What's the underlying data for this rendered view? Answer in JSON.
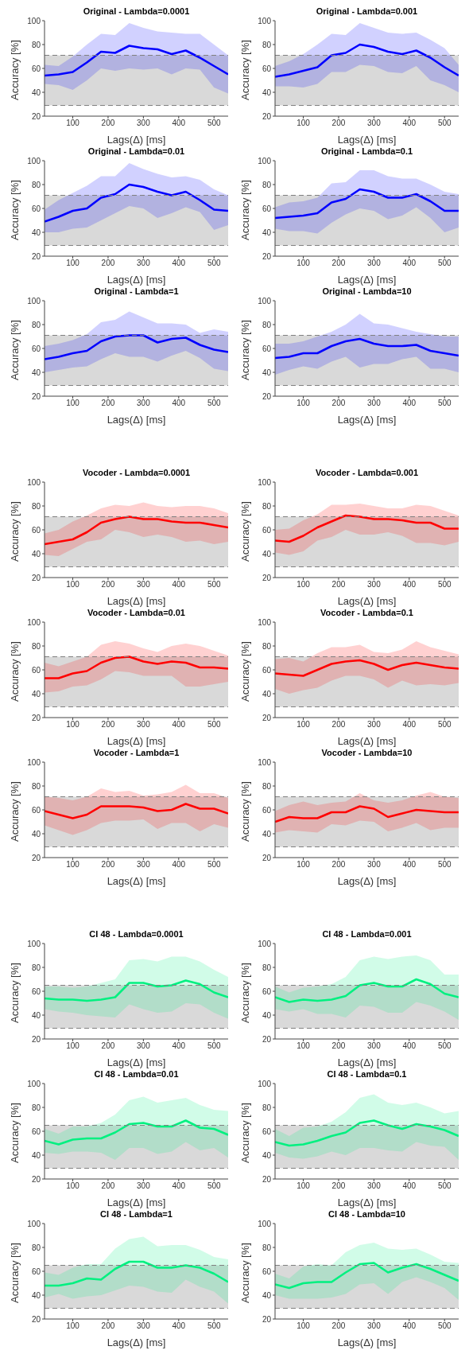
{
  "chart_data": [
    {
      "type": "line",
      "title": "Original - Lambda=0.0001",
      "xlabel": "Lags(Δ) [ms]",
      "ylabel": "Accuracy [%]",
      "x": [
        20,
        60,
        100,
        140,
        180,
        220,
        260,
        300,
        340,
        380,
        420,
        460,
        500,
        540
      ],
      "xlim": [
        20,
        540
      ],
      "xticks": [
        100,
        200,
        300,
        400,
        500
      ],
      "ylim": [
        20,
        100
      ],
      "yticks": [
        20,
        40,
        60,
        80,
        100
      ],
      "bands": [
        {
          "axis": "y",
          "from": 29,
          "to": 71,
          "color": "#d9d9d9"
        }
      ],
      "ref_lines": [
        {
          "axis": "y",
          "value": 29,
          "color": "#808080",
          "line_style": "dashed"
        },
        {
          "axis": "y",
          "value": 71,
          "color": "#808080",
          "line_style": "dashed"
        }
      ],
      "series": [
        {
          "color": "#0000ff",
          "values": [
            54,
            55,
            57,
            65,
            74,
            73,
            79,
            77,
            76,
            72,
            75,
            69,
            62,
            55
          ],
          "lower": [
            47,
            46,
            42,
            50,
            60,
            58,
            60,
            59,
            60,
            55,
            60,
            59,
            44,
            39
          ],
          "upper": [
            63,
            62,
            70,
            80,
            89,
            88,
            98,
            94,
            91,
            90,
            89,
            89,
            80,
            71
          ]
        }
      ]
    },
    {
      "type": "line",
      "title": "Original - Lambda=0.001",
      "xlabel": "Lags(Δ) [ms]",
      "ylabel": "Accuracy [%]",
      "x": [
        20,
        60,
        100,
        140,
        180,
        220,
        260,
        300,
        340,
        380,
        420,
        460,
        500,
        540
      ],
      "xlim": [
        20,
        540
      ],
      "xticks": [
        100,
        200,
        300,
        400,
        500
      ],
      "ylim": [
        20,
        100
      ],
      "yticks": [
        20,
        40,
        60,
        80,
        100
      ],
      "bands": [
        {
          "axis": "y",
          "from": 29,
          "to": 71,
          "color": "#d9d9d9"
        }
      ],
      "ref_lines": [
        {
          "axis": "y",
          "value": 29,
          "color": "#808080",
          "line_style": "dashed"
        },
        {
          "axis": "y",
          "value": 71,
          "color": "#808080",
          "line_style": "dashed"
        }
      ],
      "series": [
        {
          "color": "#0000ff",
          "values": [
            53,
            55,
            58,
            61,
            71,
            73,
            80,
            78,
            74,
            72,
            75,
            69,
            61,
            54
          ],
          "lower": [
            45,
            45,
            44,
            47,
            57,
            57,
            63,
            62,
            57,
            56,
            62,
            50,
            46,
            40
          ],
          "upper": [
            62,
            66,
            72,
            80,
            89,
            88,
            98,
            94,
            90,
            89,
            90,
            84,
            77,
            63
          ]
        }
      ]
    },
    {
      "type": "line",
      "title": "Original - Lambda=0.01",
      "xlabel": "Lags(Δ) [ms]",
      "ylabel": "Accuracy [%]",
      "x": [
        20,
        60,
        100,
        140,
        180,
        220,
        260,
        300,
        340,
        380,
        420,
        460,
        500,
        540
      ],
      "xlim": [
        20,
        540
      ],
      "xticks": [
        100,
        200,
        300,
        400,
        500
      ],
      "ylim": [
        20,
        100
      ],
      "yticks": [
        20,
        40,
        60,
        80,
        100
      ],
      "bands": [
        {
          "axis": "y",
          "from": 29,
          "to": 71,
          "color": "#d9d9d9"
        }
      ],
      "ref_lines": [
        {
          "axis": "y",
          "value": 29,
          "color": "#808080",
          "line_style": "dashed"
        },
        {
          "axis": "y",
          "value": 71,
          "color": "#808080",
          "line_style": "dashed"
        }
      ],
      "series": [
        {
          "color": "#0000ff",
          "values": [
            49,
            53,
            58,
            60,
            69,
            72,
            80,
            78,
            74,
            71,
            74,
            67,
            59,
            58
          ],
          "lower": [
            40,
            40,
            43,
            44,
            50,
            56,
            62,
            60,
            52,
            56,
            61,
            57,
            42,
            46
          ],
          "upper": [
            59,
            67,
            73,
            79,
            87,
            87,
            98,
            93,
            89,
            86,
            87,
            84,
            76,
            71
          ]
        }
      ]
    },
    {
      "type": "line",
      "title": "Original - Lambda=0.1",
      "xlabel": "Lags(Δ) [ms]",
      "ylabel": "Accuracy [%]",
      "x": [
        20,
        60,
        100,
        140,
        180,
        220,
        260,
        300,
        340,
        380,
        420,
        460,
        500,
        540
      ],
      "xlim": [
        20,
        540
      ],
      "xticks": [
        100,
        200,
        300,
        400,
        500
      ],
      "ylim": [
        20,
        100
      ],
      "yticks": [
        20,
        40,
        60,
        80,
        100
      ],
      "bands": [
        {
          "axis": "y",
          "from": 29,
          "to": 71,
          "color": "#d9d9d9"
        }
      ],
      "ref_lines": [
        {
          "axis": "y",
          "value": 29,
          "color": "#808080",
          "line_style": "dashed"
        },
        {
          "axis": "y",
          "value": 71,
          "color": "#808080",
          "line_style": "dashed"
        }
      ],
      "series": [
        {
          "color": "#0000ff",
          "values": [
            52,
            53,
            54,
            56,
            65,
            68,
            76,
            74,
            69,
            69,
            72,
            66,
            58,
            58
          ],
          "lower": [
            43,
            41,
            41,
            39,
            48,
            55,
            60,
            58,
            51,
            54,
            61,
            52,
            40,
            44
          ],
          "upper": [
            61,
            65,
            66,
            69,
            81,
            82,
            92,
            92,
            87,
            85,
            85,
            80,
            74,
            72
          ]
        }
      ]
    },
    {
      "type": "line",
      "title": "Original - Lambda=1",
      "xlabel": "Lags(Δ) [ms]",
      "ylabel": "Accuracy [%]",
      "x": [
        20,
        60,
        100,
        140,
        180,
        220,
        260,
        300,
        340,
        380,
        420,
        460,
        500,
        540
      ],
      "xlim": [
        20,
        540
      ],
      "xticks": [
        100,
        200,
        300,
        400,
        500
      ],
      "ylim": [
        20,
        100
      ],
      "yticks": [
        20,
        40,
        60,
        80,
        100
      ],
      "bands": [
        {
          "axis": "y",
          "from": 29,
          "to": 71,
          "color": "#d9d9d9"
        }
      ],
      "ref_lines": [
        {
          "axis": "y",
          "value": 29,
          "color": "#808080",
          "line_style": "dashed"
        },
        {
          "axis": "y",
          "value": 71,
          "color": "#808080",
          "line_style": "dashed"
        }
      ],
      "series": [
        {
          "color": "#0000ff",
          "values": [
            51,
            53,
            56,
            58,
            66,
            70,
            71,
            71,
            65,
            68,
            69,
            63,
            59,
            57
          ],
          "lower": [
            40,
            42,
            44,
            45,
            51,
            56,
            53,
            53,
            49,
            54,
            58,
            52,
            43,
            41
          ],
          "upper": [
            62,
            64,
            67,
            72,
            82,
            84,
            91,
            86,
            81,
            81,
            80,
            73,
            76,
            74
          ]
        }
      ]
    },
    {
      "type": "line",
      "title": "Original - Lambda=10",
      "xlabel": "Lags(Δ) [ms]",
      "ylabel": "Accuracy [%]",
      "x": [
        20,
        60,
        100,
        140,
        180,
        220,
        260,
        300,
        340,
        380,
        420,
        460,
        500,
        540
      ],
      "xlim": [
        20,
        540
      ],
      "xticks": [
        100,
        200,
        300,
        400,
        500
      ],
      "ylim": [
        20,
        100
      ],
      "yticks": [
        20,
        40,
        60,
        80,
        100
      ],
      "bands": [
        {
          "axis": "y",
          "from": 29,
          "to": 71,
          "color": "#d9d9d9"
        }
      ],
      "ref_lines": [
        {
          "axis": "y",
          "value": 29,
          "color": "#808080",
          "line_style": "dashed"
        },
        {
          "axis": "y",
          "value": 71,
          "color": "#808080",
          "line_style": "dashed"
        }
      ],
      "series": [
        {
          "color": "#0000ff",
          "values": [
            52,
            53,
            56,
            56,
            62,
            66,
            68,
            64,
            62,
            62,
            63,
            58,
            56,
            54
          ],
          "lower": [
            38,
            42,
            45,
            43,
            49,
            53,
            44,
            47,
            47,
            51,
            53,
            43,
            43,
            40
          ],
          "upper": [
            64,
            64,
            66,
            70,
            74,
            80,
            89,
            81,
            80,
            77,
            74,
            72,
            70,
            70
          ]
        }
      ]
    },
    {
      "type": "line",
      "title": "Vocoder - Lambda=0.0001",
      "xlabel": "Lags(Δ) [ms]",
      "ylabel": "Accuracy [%]",
      "x": [
        20,
        60,
        100,
        140,
        180,
        220,
        260,
        300,
        340,
        380,
        420,
        460,
        500,
        540
      ],
      "xlim": [
        20,
        540
      ],
      "xticks": [
        100,
        200,
        300,
        400,
        500
      ],
      "ylim": [
        20,
        100
      ],
      "yticks": [
        20,
        40,
        60,
        80,
        100
      ],
      "bands": [
        {
          "axis": "y",
          "from": 29,
          "to": 71,
          "color": "#d9d9d9"
        }
      ],
      "ref_lines": [
        {
          "axis": "y",
          "value": 29,
          "color": "#808080",
          "line_style": "dashed"
        },
        {
          "axis": "y",
          "value": 71,
          "color": "#808080",
          "line_style": "dashed"
        }
      ],
      "series": [
        {
          "color": "#ff0000",
          "values": [
            48,
            50,
            52,
            58,
            66,
            69,
            71,
            69,
            69,
            67,
            66,
            66,
            64,
            62
          ],
          "lower": [
            39,
            38,
            44,
            50,
            52,
            60,
            58,
            54,
            56,
            54,
            50,
            51,
            48,
            50
          ],
          "upper": [
            57,
            60,
            67,
            72,
            78,
            81,
            80,
            83,
            80,
            79,
            80,
            80,
            78,
            74
          ]
        }
      ]
    },
    {
      "type": "line",
      "title": "Vocoder - Lambda=0.001",
      "xlabel": "Lags(Δ) [ms]",
      "ylabel": "Accuracy [%]",
      "x": [
        20,
        60,
        100,
        140,
        180,
        220,
        260,
        300,
        340,
        380,
        420,
        460,
        500,
        540
      ],
      "xlim": [
        20,
        540
      ],
      "xticks": [
        100,
        200,
        300,
        400,
        500
      ],
      "ylim": [
        20,
        100
      ],
      "yticks": [
        20,
        40,
        60,
        80,
        100
      ],
      "bands": [
        {
          "axis": "y",
          "from": 29,
          "to": 71,
          "color": "#d9d9d9"
        }
      ],
      "ref_lines": [
        {
          "axis": "y",
          "value": 29,
          "color": "#808080",
          "line_style": "dashed"
        },
        {
          "axis": "y",
          "value": 71,
          "color": "#808080",
          "line_style": "dashed"
        }
      ],
      "series": [
        {
          "color": "#ff0000",
          "values": [
            51,
            50,
            55,
            62,
            67,
            72,
            71,
            69,
            69,
            68,
            66,
            66,
            61,
            61
          ],
          "lower": [
            41,
            39,
            42,
            51,
            54,
            60,
            56,
            56,
            58,
            55,
            49,
            49,
            47,
            50
          ],
          "upper": [
            60,
            61,
            68,
            73,
            81,
            81,
            82,
            80,
            78,
            78,
            81,
            80,
            76,
            72
          ]
        }
      ]
    },
    {
      "type": "line",
      "title": "Vocoder - Lambda=0.01",
      "xlabel": "Lags(Δ) [ms]",
      "ylabel": "Accuracy [%]",
      "x": [
        20,
        60,
        100,
        140,
        180,
        220,
        260,
        300,
        340,
        380,
        420,
        460,
        500,
        540
      ],
      "xlim": [
        20,
        540
      ],
      "xticks": [
        100,
        200,
        300,
        400,
        500
      ],
      "ylim": [
        20,
        100
      ],
      "yticks": [
        20,
        40,
        60,
        80,
        100
      ],
      "bands": [
        {
          "axis": "y",
          "from": 29,
          "to": 71,
          "color": "#d9d9d9"
        }
      ],
      "ref_lines": [
        {
          "axis": "y",
          "value": 29,
          "color": "#808080",
          "line_style": "dashed"
        },
        {
          "axis": "y",
          "value": 71,
          "color": "#808080",
          "line_style": "dashed"
        }
      ],
      "series": [
        {
          "color": "#ff0000",
          "values": [
            53,
            53,
            57,
            59,
            66,
            70,
            71,
            67,
            65,
            67,
            66,
            62,
            62,
            61
          ],
          "lower": [
            41,
            42,
            46,
            47,
            52,
            59,
            58,
            55,
            55,
            55,
            46,
            46,
            48,
            50
          ],
          "upper": [
            66,
            63,
            67,
            71,
            81,
            84,
            82,
            78,
            75,
            80,
            82,
            80,
            76,
            72
          ]
        }
      ]
    },
    {
      "type": "line",
      "title": "Vocoder - Lambda=0.1",
      "xlabel": "Lags(Δ) [ms]",
      "ylabel": "Accuracy [%]",
      "x": [
        20,
        60,
        100,
        140,
        180,
        220,
        260,
        300,
        340,
        380,
        420,
        460,
        500,
        540
      ],
      "xlim": [
        20,
        540
      ],
      "xticks": [
        100,
        200,
        300,
        400,
        500
      ],
      "ylim": [
        20,
        100
      ],
      "yticks": [
        20,
        40,
        60,
        80,
        100
      ],
      "bands": [
        {
          "axis": "y",
          "from": 29,
          "to": 71,
          "color": "#d9d9d9"
        }
      ],
      "ref_lines": [
        {
          "axis": "y",
          "value": 29,
          "color": "#808080",
          "line_style": "dashed"
        },
        {
          "axis": "y",
          "value": 71,
          "color": "#808080",
          "line_style": "dashed"
        }
      ],
      "series": [
        {
          "color": "#ff0000",
          "values": [
            57,
            56,
            55,
            60,
            65,
            67,
            68,
            65,
            60,
            64,
            66,
            64,
            62,
            61
          ],
          "lower": [
            44,
            40,
            43,
            45,
            51,
            55,
            55,
            52,
            45,
            51,
            47,
            48,
            47,
            49
          ],
          "upper": [
            69,
            70,
            67,
            74,
            79,
            79,
            81,
            75,
            74,
            77,
            84,
            79,
            76,
            73
          ]
        }
      ]
    },
    {
      "type": "line",
      "title": "Vocoder - Lambda=1",
      "xlabel": "Lags(Δ) [ms]",
      "ylabel": "Accuracy [%]",
      "x": [
        20,
        60,
        100,
        140,
        180,
        220,
        260,
        300,
        340,
        380,
        420,
        460,
        500,
        540
      ],
      "xlim": [
        20,
        540
      ],
      "xticks": [
        100,
        200,
        300,
        400,
        500
      ],
      "ylim": [
        20,
        100
      ],
      "yticks": [
        20,
        40,
        60,
        80,
        100
      ],
      "bands": [
        {
          "axis": "y",
          "from": 29,
          "to": 71,
          "color": "#d9d9d9"
        }
      ],
      "ref_lines": [
        {
          "axis": "y",
          "value": 29,
          "color": "#808080",
          "line_style": "dashed"
        },
        {
          "axis": "y",
          "value": 71,
          "color": "#808080",
          "line_style": "dashed"
        }
      ],
      "series": [
        {
          "color": "#ff0000",
          "values": [
            59,
            56,
            53,
            56,
            63,
            63,
            63,
            62,
            59,
            60,
            65,
            61,
            61,
            57
          ],
          "lower": [
            47,
            43,
            39,
            43,
            49,
            51,
            51,
            52,
            44,
            49,
            49,
            42,
            48,
            45
          ],
          "upper": [
            71,
            70,
            68,
            71,
            78,
            75,
            76,
            72,
            73,
            75,
            81,
            74,
            74,
            70
          ]
        }
      ]
    },
    {
      "type": "line",
      "title": "Vocoder - Lambda=10",
      "xlabel": "Lags(Δ) [ms]",
      "ylabel": "Accuracy [%]",
      "x": [
        20,
        60,
        100,
        140,
        180,
        220,
        260,
        300,
        340,
        380,
        420,
        460,
        500,
        540
      ],
      "xlim": [
        20,
        540
      ],
      "xticks": [
        100,
        200,
        300,
        400,
        500
      ],
      "ylim": [
        20,
        100
      ],
      "yticks": [
        20,
        40,
        60,
        80,
        100
      ],
      "bands": [
        {
          "axis": "y",
          "from": 29,
          "to": 71,
          "color": "#d9d9d9"
        }
      ],
      "ref_lines": [
        {
          "axis": "y",
          "value": 29,
          "color": "#808080",
          "line_style": "dashed"
        },
        {
          "axis": "y",
          "value": 71,
          "color": "#808080",
          "line_style": "dashed"
        }
      ],
      "series": [
        {
          "color": "#ff0000",
          "values": [
            50,
            54,
            53,
            53,
            58,
            58,
            63,
            61,
            54,
            57,
            60,
            59,
            58,
            58
          ],
          "lower": [
            41,
            43,
            42,
            41,
            48,
            47,
            51,
            50,
            42,
            45,
            49,
            43,
            45,
            45
          ],
          "upper": [
            59,
            64,
            67,
            64,
            66,
            67,
            74,
            68,
            66,
            68,
            72,
            75,
            71,
            70
          ]
        }
      ]
    },
    {
      "type": "line",
      "title": "CI 48 - Lambda=0.0001",
      "xlabel": "Lags(Δ) [ms]",
      "ylabel": "Accuracy [%]",
      "x": [
        20,
        60,
        100,
        140,
        180,
        220,
        260,
        300,
        340,
        380,
        420,
        460,
        500,
        540
      ],
      "xlim": [
        20,
        540
      ],
      "xticks": [
        100,
        200,
        300,
        400,
        500
      ],
      "ylim": [
        20,
        100
      ],
      "yticks": [
        20,
        40,
        60,
        80,
        100
      ],
      "bands": [
        {
          "axis": "y",
          "from": 29,
          "to": 65,
          "color": "#d9d9d9"
        }
      ],
      "ref_lines": [
        {
          "axis": "y",
          "value": 29,
          "color": "#808080",
          "line_style": "dashed"
        },
        {
          "axis": "y",
          "value": 65,
          "color": "#808080",
          "line_style": "dashed"
        }
      ],
      "series": [
        {
          "color": "#00f080",
          "values": [
            54,
            53,
            53,
            52,
            53,
            55,
            67,
            67,
            64,
            65,
            69,
            66,
            59,
            55
          ],
          "lower": [
            45,
            43,
            42,
            40,
            39,
            38,
            49,
            45,
            42,
            43,
            50,
            49,
            42,
            37
          ],
          "upper": [
            64,
            64,
            63,
            64,
            67,
            70,
            86,
            87,
            85,
            89,
            89,
            85,
            78,
            72
          ]
        }
      ]
    },
    {
      "type": "line",
      "title": "CI 48 - Lambda=0.001",
      "xlabel": "Lags(Δ) [ms]",
      "ylabel": "Accuracy [%]",
      "x": [
        20,
        60,
        100,
        140,
        180,
        220,
        260,
        300,
        340,
        380,
        420,
        460,
        500,
        540
      ],
      "xlim": [
        20,
        540
      ],
      "xticks": [
        100,
        200,
        300,
        400,
        500
      ],
      "ylim": [
        20,
        100
      ],
      "yticks": [
        20,
        40,
        60,
        80,
        100
      ],
      "bands": [
        {
          "axis": "y",
          "from": 29,
          "to": 65,
          "color": "#d9d9d9"
        }
      ],
      "ref_lines": [
        {
          "axis": "y",
          "value": 29,
          "color": "#808080",
          "line_style": "dashed"
        },
        {
          "axis": "y",
          "value": 65,
          "color": "#808080",
          "line_style": "dashed"
        }
      ],
      "series": [
        {
          "color": "#00f080",
          "values": [
            55,
            51,
            53,
            52,
            53,
            56,
            65,
            67,
            64,
            64,
            70,
            66,
            58,
            55
          ],
          "lower": [
            45,
            43,
            45,
            41,
            41,
            38,
            48,
            47,
            42,
            42,
            51,
            48,
            43,
            36
          ],
          "upper": [
            64,
            59,
            63,
            64,
            66,
            72,
            86,
            89,
            87,
            89,
            90,
            86,
            74,
            74
          ]
        }
      ]
    },
    {
      "type": "line",
      "title": "CI 48 - Lambda=0.01",
      "xlabel": "Lags(Δ) [ms]",
      "ylabel": "Accuracy [%]",
      "x": [
        20,
        60,
        100,
        140,
        180,
        220,
        260,
        300,
        340,
        380,
        420,
        460,
        500,
        540
      ],
      "xlim": [
        20,
        540
      ],
      "xticks": [
        100,
        200,
        300,
        400,
        500
      ],
      "ylim": [
        20,
        100
      ],
      "yticks": [
        20,
        40,
        60,
        80,
        100
      ],
      "bands": [
        {
          "axis": "y",
          "from": 29,
          "to": 65,
          "color": "#d9d9d9"
        }
      ],
      "ref_lines": [
        {
          "axis": "y",
          "value": 29,
          "color": "#808080",
          "line_style": "dashed"
        },
        {
          "axis": "y",
          "value": 65,
          "color": "#808080",
          "line_style": "dashed"
        }
      ],
      "series": [
        {
          "color": "#00f080",
          "values": [
            52,
            49,
            53,
            54,
            54,
            59,
            66,
            67,
            64,
            64,
            69,
            63,
            62,
            57
          ],
          "lower": [
            42,
            41,
            43,
            43,
            42,
            36,
            46,
            46,
            41,
            43,
            51,
            44,
            46,
            38
          ],
          "upper": [
            62,
            58,
            64,
            64,
            67,
            74,
            86,
            89,
            84,
            86,
            88,
            82,
            78,
            77
          ]
        }
      ]
    },
    {
      "type": "line",
      "title": "CI 48 - Lambda=0.1",
      "xlabel": "Lags(Δ) [ms]",
      "ylabel": "Accuracy [%]",
      "x": [
        20,
        60,
        100,
        140,
        180,
        220,
        260,
        300,
        340,
        380,
        420,
        460,
        500,
        540
      ],
      "xlim": [
        20,
        540
      ],
      "xticks": [
        100,
        200,
        300,
        400,
        500
      ],
      "ylim": [
        20,
        100
      ],
      "yticks": [
        20,
        40,
        60,
        80,
        100
      ],
      "bands": [
        {
          "axis": "y",
          "from": 29,
          "to": 65,
          "color": "#d9d9d9"
        }
      ],
      "ref_lines": [
        {
          "axis": "y",
          "value": 29,
          "color": "#808080",
          "line_style": "dashed"
        },
        {
          "axis": "y",
          "value": 65,
          "color": "#808080",
          "line_style": "dashed"
        }
      ],
      "series": [
        {
          "color": "#00f080",
          "values": [
            51,
            48,
            49,
            52,
            56,
            59,
            67,
            69,
            65,
            62,
            66,
            64,
            61,
            56
          ],
          "lower": [
            42,
            38,
            37,
            39,
            43,
            40,
            46,
            46,
            44,
            43,
            51,
            48,
            47,
            36
          ],
          "upper": [
            62,
            56,
            63,
            64,
            68,
            76,
            88,
            91,
            84,
            82,
            84,
            80,
            75,
            77
          ]
        }
      ]
    },
    {
      "type": "line",
      "title": "CI 48 - Lambda=1",
      "xlabel": "Lags(Δ) [ms]",
      "ylabel": "Accuracy [%]",
      "x": [
        20,
        60,
        100,
        140,
        180,
        220,
        260,
        300,
        340,
        380,
        420,
        460,
        500,
        540
      ],
      "xlim": [
        20,
        540
      ],
      "xticks": [
        100,
        200,
        300,
        400,
        500
      ],
      "ylim": [
        20,
        100
      ],
      "yticks": [
        20,
        40,
        60,
        80,
        100
      ],
      "bands": [
        {
          "axis": "y",
          "from": 29,
          "to": 65,
          "color": "#d9d9d9"
        }
      ],
      "ref_lines": [
        {
          "axis": "y",
          "value": 29,
          "color": "#808080",
          "line_style": "dashed"
        },
        {
          "axis": "y",
          "value": 65,
          "color": "#808080",
          "line_style": "dashed"
        }
      ],
      "series": [
        {
          "color": "#00f080",
          "values": [
            48,
            48,
            50,
            54,
            53,
            62,
            68,
            68,
            63,
            63,
            65,
            63,
            58,
            51
          ],
          "lower": [
            38,
            41,
            37,
            39,
            40,
            44,
            48,
            47,
            43,
            42,
            53,
            47,
            43,
            33
          ],
          "upper": [
            59,
            57,
            63,
            66,
            66,
            79,
            87,
            89,
            81,
            82,
            82,
            78,
            72,
            70
          ]
        }
      ]
    },
    {
      "type": "line",
      "title": "CI 48 - Lambda=10",
      "xlabel": "Lags(Δ) [ms]",
      "ylabel": "Accuracy [%]",
      "x": [
        20,
        60,
        100,
        140,
        180,
        220,
        260,
        300,
        340,
        380,
        420,
        460,
        500,
        540
      ],
      "xlim": [
        20,
        540
      ],
      "xticks": [
        100,
        200,
        300,
        400,
        500
      ],
      "ylim": [
        20,
        100
      ],
      "yticks": [
        20,
        40,
        60,
        80,
        100
      ],
      "bands": [
        {
          "axis": "y",
          "from": 29,
          "to": 65,
          "color": "#d9d9d9"
        }
      ],
      "ref_lines": [
        {
          "axis": "y",
          "value": 29,
          "color": "#808080",
          "line_style": "dashed"
        },
        {
          "axis": "y",
          "value": 65,
          "color": "#808080",
          "line_style": "dashed"
        }
      ],
      "series": [
        {
          "color": "#00f080",
          "values": [
            49,
            46,
            50,
            51,
            51,
            59,
            66,
            67,
            59,
            63,
            66,
            62,
            57,
            52
          ],
          "lower": [
            40,
            37,
            37,
            37,
            38,
            41,
            49,
            50,
            41,
            51,
            55,
            51,
            46,
            36
          ],
          "upper": [
            58,
            54,
            64,
            66,
            65,
            76,
            82,
            84,
            79,
            78,
            79,
            74,
            68,
            67
          ]
        }
      ]
    }
  ]
}
